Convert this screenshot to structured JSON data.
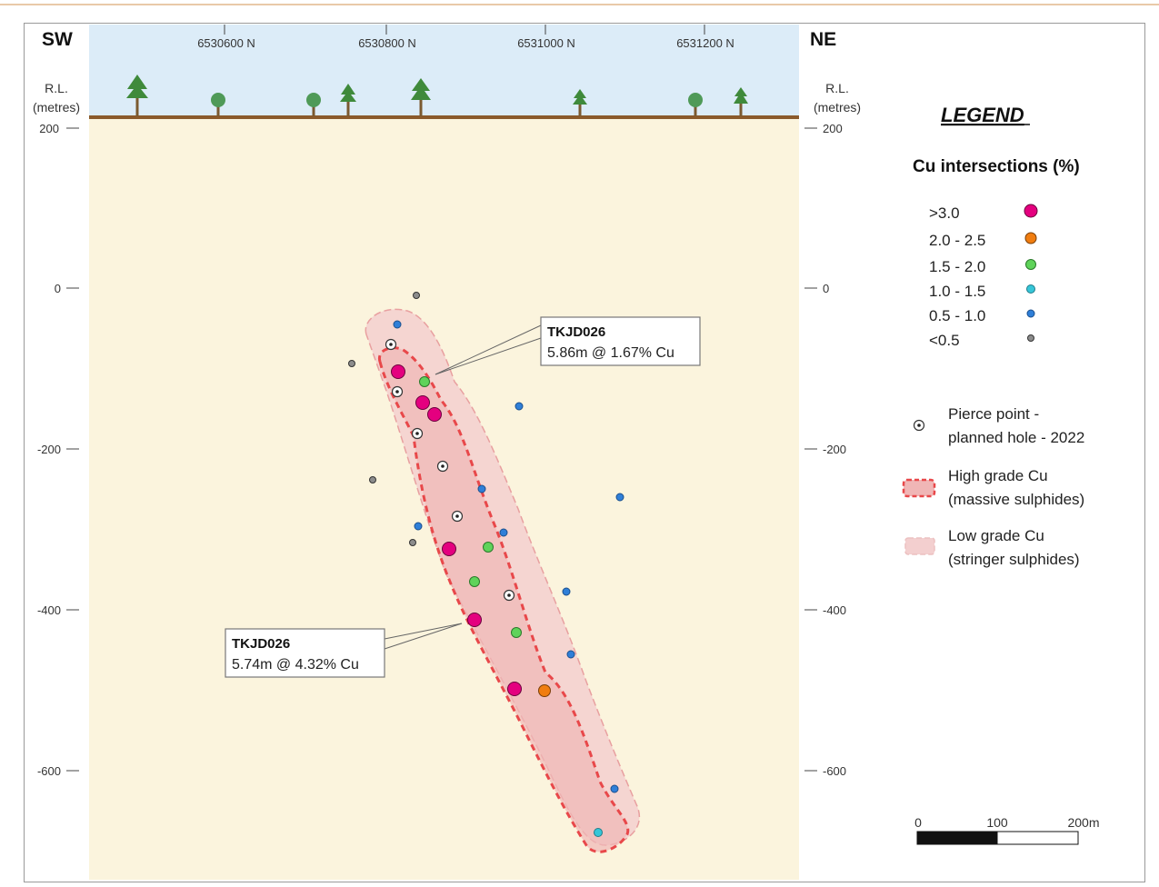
{
  "section": {
    "dir_left": "SW",
    "dir_right": "NE",
    "rl_label_left": [
      "R.L.",
      "(metres)"
    ],
    "rl_label_right": [
      "R.L.",
      "(metres)"
    ],
    "northings": [
      "6530600 N",
      "6530800 N",
      "6531000 N",
      "6531200 N"
    ],
    "rl_ticks_left": [
      "200",
      "0",
      "-200",
      "-400",
      "-600"
    ],
    "rl_ticks_right": [
      "200",
      "0",
      "-200",
      "-400",
      "-600"
    ]
  },
  "colors": {
    "ground": "#fbf4dd",
    "sky": "#dcecf8",
    "surface": "#8a5a2b",
    "high_grade": "#e8484a",
    "low_grade": "#f3cfcf",
    "cu_gt3": "#e4007f",
    "cu_2_25": "#f07d10",
    "cu_15_2": "#5fd35a",
    "cu_1_15": "#36c6d8",
    "cu_05_1": "#2f7fd8",
    "cu_lt05": "#8c8c8c"
  },
  "callouts": [
    {
      "hole": "TKJD026",
      "text": "5.86m @ 1.67% Cu"
    },
    {
      "hole": "TKJD026",
      "text": "5.74m @ 4.32% Cu"
    }
  ],
  "legend": {
    "title": "LEGEND",
    "cu_title": "Cu intersections (%)",
    "cu_items": [
      {
        "label": ">3.0",
        "color_key": "cu_gt3"
      },
      {
        "label": "2.0 - 2.5",
        "color_key": "cu_2_25"
      },
      {
        "label": "1.5 - 2.0",
        "color_key": "cu_15_2"
      },
      {
        "label": "1.0 - 1.5",
        "color_key": "cu_1_15"
      },
      {
        "label": "0.5 - 1.0",
        "color_key": "cu_05_1"
      },
      {
        "label": "<0.5",
        "color_key": "cu_lt05"
      }
    ],
    "pierce": [
      "Pierce point -",
      "planned hole - 2022"
    ],
    "high_grade": [
      "High grade Cu",
      "(massive sulphides)"
    ],
    "low_grade": [
      "Low grade Cu",
      "(stringer sulphides)"
    ]
  },
  "scale_bar": {
    "labels": [
      "0",
      "100",
      "200m"
    ]
  }
}
